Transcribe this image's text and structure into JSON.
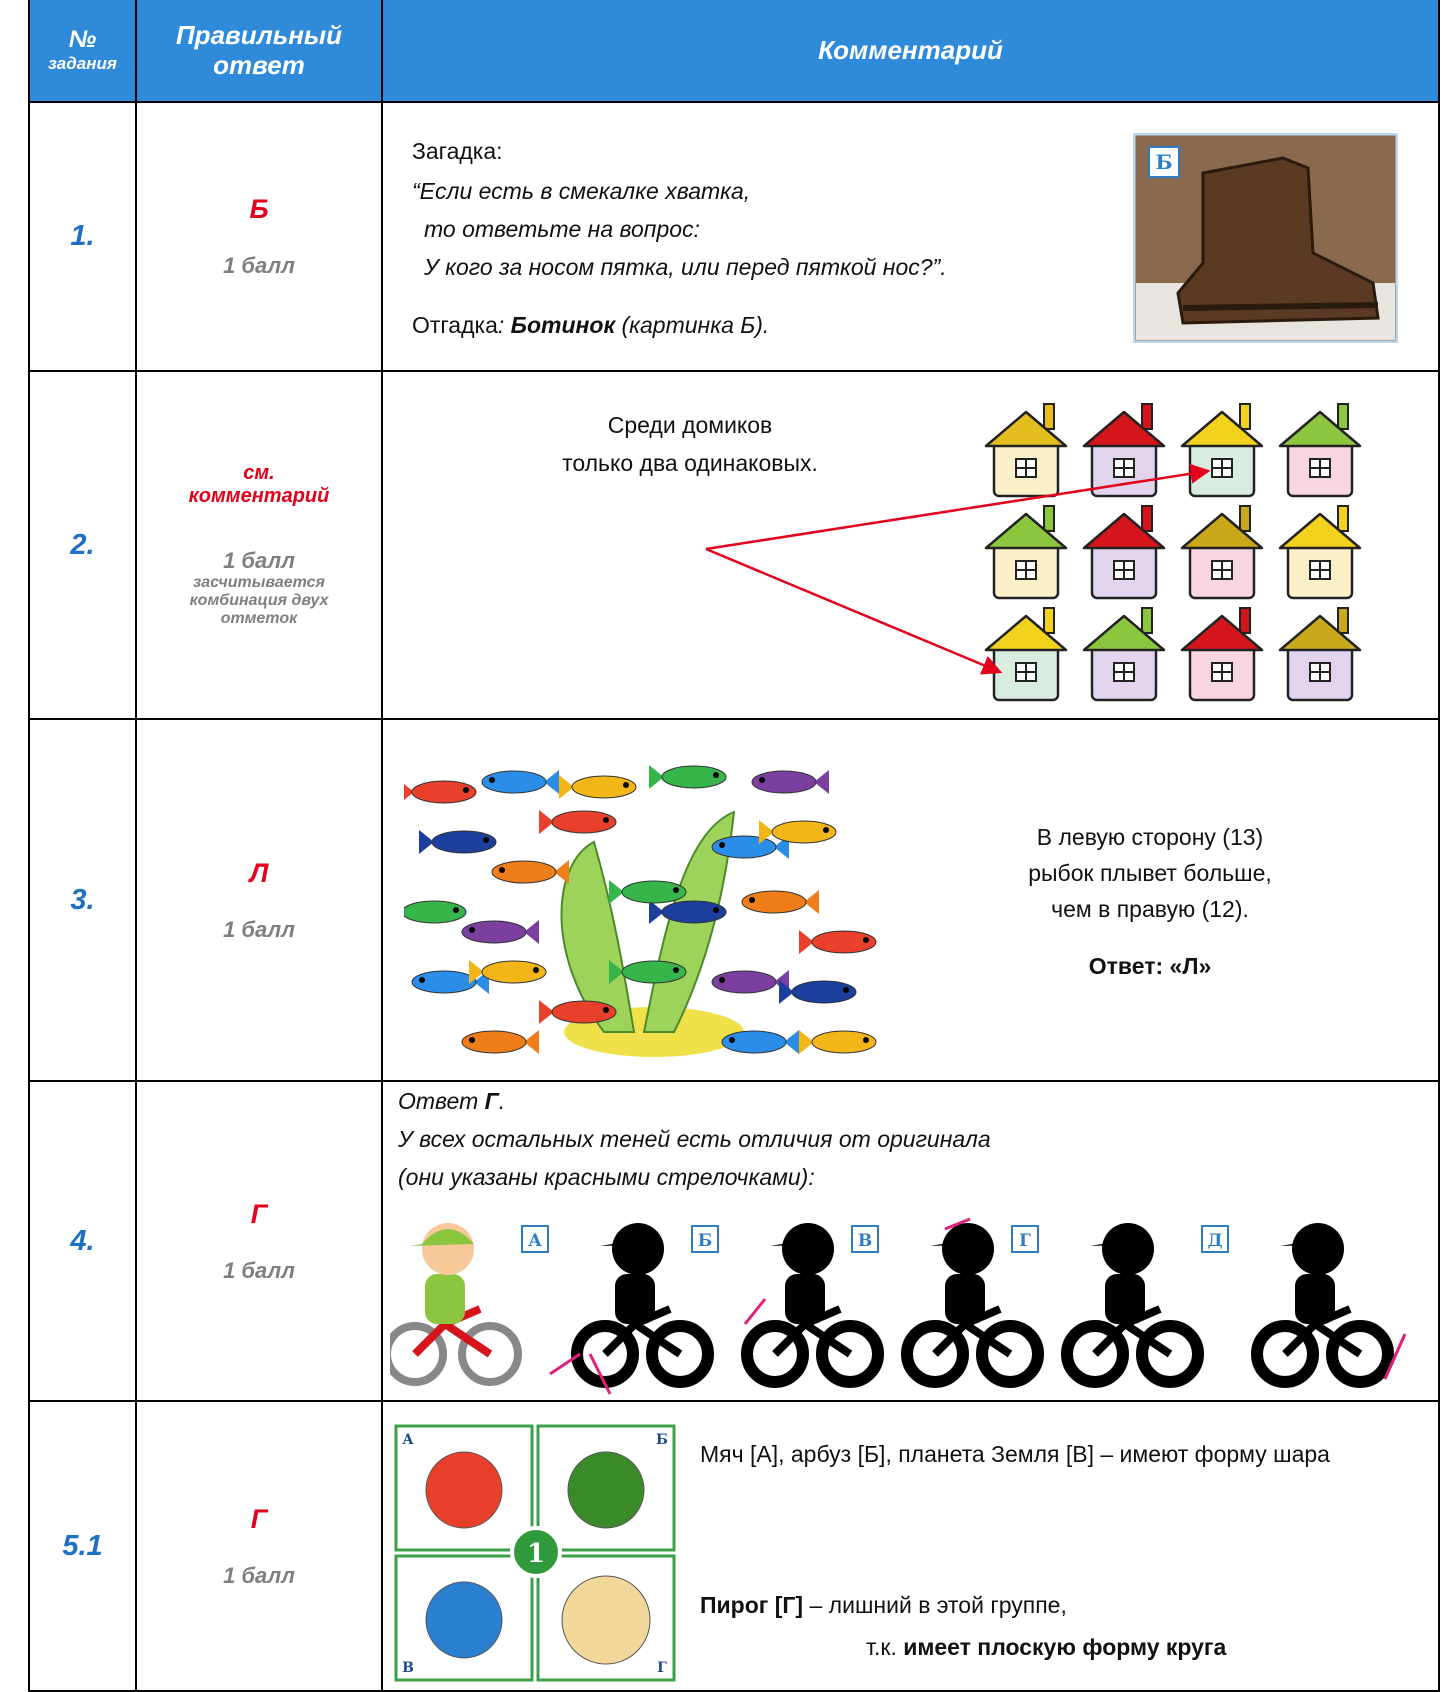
{
  "header": {
    "number": "№",
    "number_sub": "задания",
    "answer": "Правильный ответ",
    "comment": "Комментарий"
  },
  "rows": [
    {
      "number": "1.",
      "answer": "Б",
      "points": "1 балл",
      "comment": {
        "intro": "Загадка:",
        "riddle": [
          "“Если есть в смекалке хватка,",
          "то ответьте на вопрос:",
          "У кого за носом пятка, или перед пяткой нос?”."
        ],
        "solution_label": "Отгадка",
        "solution_colon": ": ",
        "solution": "Ботинок",
        "solution_note": " (картинка Б).",
        "image_label": "Б"
      }
    },
    {
      "number": "2.",
      "answer": "см. комментарий",
      "points": "1 балл",
      "note": "засчитывается комбинация двух отметок",
      "comment": {
        "lines": [
          "Среди домиков",
          "только два одинаковых."
        ]
      }
    },
    {
      "number": "3.",
      "answer": "Л",
      "points": "1 балл",
      "comment": {
        "lines": [
          "В левую сторону (13)",
          "рыбок плывет больше,",
          "чем в правую (12)."
        ],
        "answer_line": "Ответ: «Л»"
      }
    },
    {
      "number": "4.",
      "answer": "Г",
      "points": "1 балл",
      "comment": {
        "answer_prefix": "Ответ ",
        "answer_letter": "Г",
        "answer_dot": ".",
        "lines": [
          "У всех остальных теней есть отличия от оригинала",
          "(они указаны красными стрелочками):"
        ],
        "image_labels": [
          "А",
          "Б",
          "В",
          "Г",
          "Д"
        ]
      }
    },
    {
      "number": "5.1",
      "answer": "Г",
      "points": "1 балл",
      "comment": {
        "text": "Мяч [А], арбуз [Б], планета Земля [В] – имеют форму шара",
        "odd": "Пирог [Г]",
        "odd_rest": " – лишний в этой группе,",
        "reason_prefix": "т.к. ",
        "reason": "имеет плоскую форму круга",
        "image_labels": [
          "А",
          "Б",
          "В",
          "Г"
        ],
        "badge": "1"
      }
    }
  ]
}
